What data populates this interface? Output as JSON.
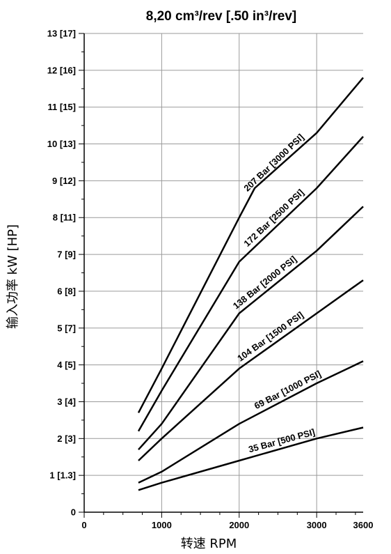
{
  "chart_data": {
    "type": "line",
    "title": "8,20 cm³/rev [.50 in³/rev]",
    "xlabel": "转速 RPM",
    "ylabel": "输入功率 kW [HP]",
    "xlim": [
      0,
      3600
    ],
    "ylim": [
      0,
      13
    ],
    "grid": true,
    "x_ticks": [
      {
        "value": 0,
        "label": "0"
      },
      {
        "value": 1000,
        "label": "1000"
      },
      {
        "value": 2000,
        "label": "2000"
      },
      {
        "value": 3000,
        "label": "3000"
      },
      {
        "value": 3600,
        "label": "3600"
      }
    ],
    "y_ticks": [
      {
        "value": 0,
        "label": "0"
      },
      {
        "value": 1,
        "label": "1 [1.3]"
      },
      {
        "value": 2,
        "label": "2 [3]"
      },
      {
        "value": 3,
        "label": "3 [4]"
      },
      {
        "value": 4,
        "label": "4 [5]"
      },
      {
        "value": 5,
        "label": "5 [7]"
      },
      {
        "value": 6,
        "label": "6 [8]"
      },
      {
        "value": 7,
        "label": "7 [9]"
      },
      {
        "value": 8,
        "label": "8 [11]"
      },
      {
        "value": 9,
        "label": "9 [12]"
      },
      {
        "value": 10,
        "label": "10 [13]"
      },
      {
        "value": 11,
        "label": "11 [15]"
      },
      {
        "value": 12,
        "label": "12 [16]"
      },
      {
        "value": 13,
        "label": "13 [17]"
      }
    ],
    "series": [
      {
        "name": "207 Bar [3000 PSI]",
        "x": [
          700,
          1000,
          2000,
          2200,
          3000,
          3600
        ],
        "y": [
          2.7,
          3.9,
          8.0,
          8.8,
          10.3,
          11.8
        ]
      },
      {
        "name": "172 Bar [2500 PSI]",
        "x": [
          700,
          1000,
          2000,
          3000,
          3600
        ],
        "y": [
          2.2,
          3.3,
          6.8,
          8.8,
          10.2
        ]
      },
      {
        "name": "138 Bar [2000 PSI]",
        "x": [
          700,
          1000,
          2000,
          3000,
          3600
        ],
        "y": [
          1.7,
          2.4,
          5.4,
          7.1,
          8.3
        ]
      },
      {
        "name": "104 Bar [1500 PSI]",
        "x": [
          700,
          1000,
          2000,
          3000,
          3600
        ],
        "y": [
          1.4,
          2.0,
          3.9,
          5.4,
          6.3
        ]
      },
      {
        "name": "69 Bar [1000 PSI]",
        "x": [
          700,
          1000,
          2000,
          3000,
          3600
        ],
        "y": [
          0.8,
          1.1,
          2.4,
          3.5,
          4.1
        ]
      },
      {
        "name": "35 Bar [500 PSI]",
        "x": [
          700,
          1000,
          2000,
          3000,
          3600
        ],
        "y": [
          0.6,
          0.8,
          1.4,
          2.0,
          2.3
        ]
      }
    ]
  }
}
